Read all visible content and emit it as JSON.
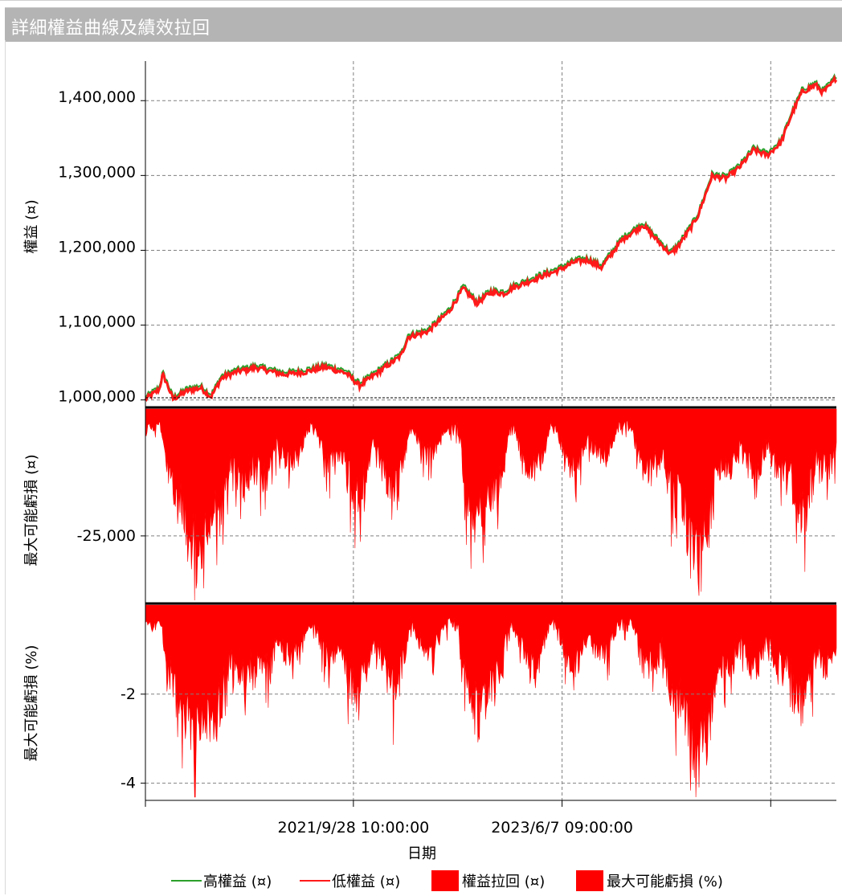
{
  "window": {
    "title": "詳細權益曲線及績效拉回"
  },
  "colors": {
    "high": "#2ca02c",
    "low": "#ff1a1a",
    "fill": "#ff0000",
    "titlebar": "#b4b4b4"
  },
  "chart_data": {
    "type": "line",
    "xlabel": "日期",
    "x_ticks": [
      "2021/9/28 10:00:00",
      "2023/6/7 09:00:00"
    ],
    "panels": [
      {
        "kind": "line",
        "ylabel": "權益 (¤)",
        "ylim": [
          990000,
          1440000
        ],
        "y_ticks": [
          "1,000,000",
          "1,100,000",
          "1,200,000",
          "1,300,000",
          "1,400,000"
        ],
        "series": [
          {
            "name": "高權益 (¤)",
            "color": "#2ca02c"
          },
          {
            "name": "低權益 (¤)",
            "color": "#ff1a1a"
          }
        ],
        "x": [
          0,
          0.02,
          0.025,
          0.03,
          0.04,
          0.06,
          0.08,
          0.095,
          0.11,
          0.13,
          0.16,
          0.2,
          0.23,
          0.26,
          0.29,
          0.31,
          0.34,
          0.37,
          0.38,
          0.4,
          0.41,
          0.44,
          0.46,
          0.48,
          0.5,
          0.52,
          0.53,
          0.57,
          0.6,
          0.62,
          0.64,
          0.66,
          0.69,
          0.72,
          0.745,
          0.76,
          0.77,
          0.79,
          0.8,
          0.82,
          0.84,
          0.86,
          0.88,
          0.9,
          0.92,
          0.935,
          0.95,
          0.97,
          0.98,
          0.99,
          1.0
        ],
        "values": [
          1002000,
          1015000,
          1035000,
          1025000,
          1002000,
          1013000,
          1017000,
          1005000,
          1030000,
          1038000,
          1044000,
          1035000,
          1038000,
          1045000,
          1037000,
          1020000,
          1040000,
          1060000,
          1085000,
          1090000,
          1093000,
          1120000,
          1150000,
          1130000,
          1145000,
          1143000,
          1150000,
          1165000,
          1175000,
          1185000,
          1188000,
          1178000,
          1215000,
          1235000,
          1210000,
          1196000,
          1205000,
          1232000,
          1248000,
          1300000,
          1297000,
          1312000,
          1335000,
          1328000,
          1345000,
          1382000,
          1412000,
          1422000,
          1412000,
          1420000,
          1432000
        ]
      },
      {
        "kind": "area",
        "ylabel": "最大可能虧損 (¤)",
        "ylim": [
          -38000,
          0
        ],
        "y_ticks": [
          "-25,000"
        ],
        "series": [
          {
            "name": "權益拉回 (¤)",
            "color": "#ff0000"
          }
        ]
      },
      {
        "kind": "area",
        "ylabel": "最大可能虧損 (%)",
        "ylim": [
          -4.35,
          0
        ],
        "y_ticks": [
          "-2",
          "-4"
        ],
        "series": [
          {
            "name": "最大可能虧損 (%)",
            "color": "#ff0000"
          }
        ]
      }
    ],
    "drawdown_dips": [
      {
        "x": 0.01,
        "depth": 0.12,
        "width": 0.02
      },
      {
        "x": 0.05,
        "depth": 0.62,
        "width": 0.03
      },
      {
        "x": 0.075,
        "depth": 0.92,
        "width": 0.04
      },
      {
        "x": 0.1,
        "depth": 0.72,
        "width": 0.03
      },
      {
        "x": 0.14,
        "depth": 0.5,
        "width": 0.03
      },
      {
        "x": 0.17,
        "depth": 0.45,
        "width": 0.03
      },
      {
        "x": 0.21,
        "depth": 0.35,
        "width": 0.03
      },
      {
        "x": 0.27,
        "depth": 0.36,
        "width": 0.03
      },
      {
        "x": 0.305,
        "depth": 0.55,
        "width": 0.03
      },
      {
        "x": 0.34,
        "depth": 0.32,
        "width": 0.03
      },
      {
        "x": 0.36,
        "depth": 0.55,
        "width": 0.025
      },
      {
        "x": 0.41,
        "depth": 0.3,
        "width": 0.03
      },
      {
        "x": 0.48,
        "depth": 0.72,
        "width": 0.03
      },
      {
        "x": 0.5,
        "depth": 0.55,
        "width": 0.03
      },
      {
        "x": 0.56,
        "depth": 0.4,
        "width": 0.03
      },
      {
        "x": 0.62,
        "depth": 0.38,
        "width": 0.03
      },
      {
        "x": 0.66,
        "depth": 0.32,
        "width": 0.03
      },
      {
        "x": 0.73,
        "depth": 0.42,
        "width": 0.03
      },
      {
        "x": 0.77,
        "depth": 0.6,
        "width": 0.03
      },
      {
        "x": 0.8,
        "depth": 1.0,
        "width": 0.035
      },
      {
        "x": 0.84,
        "depth": 0.42,
        "width": 0.03
      },
      {
        "x": 0.88,
        "depth": 0.4,
        "width": 0.03
      },
      {
        "x": 0.92,
        "depth": 0.4,
        "width": 0.03
      },
      {
        "x": 0.95,
        "depth": 0.66,
        "width": 0.03
      },
      {
        "x": 0.985,
        "depth": 0.42,
        "width": 0.025
      }
    ],
    "legend": {
      "position": "bottom",
      "items": [
        {
          "name": "高權益 (¤)",
          "style": "line",
          "color": "#2ca02c"
        },
        {
          "name": "低權益 (¤)",
          "style": "line",
          "color": "#ff1a1a"
        },
        {
          "name": "權益拉回 (¤)",
          "style": "box",
          "color": "#ff0000"
        },
        {
          "name": "最大可能虧損 (%)",
          "style": "box",
          "color": "#ff0000"
        }
      ]
    },
    "grid": true
  }
}
